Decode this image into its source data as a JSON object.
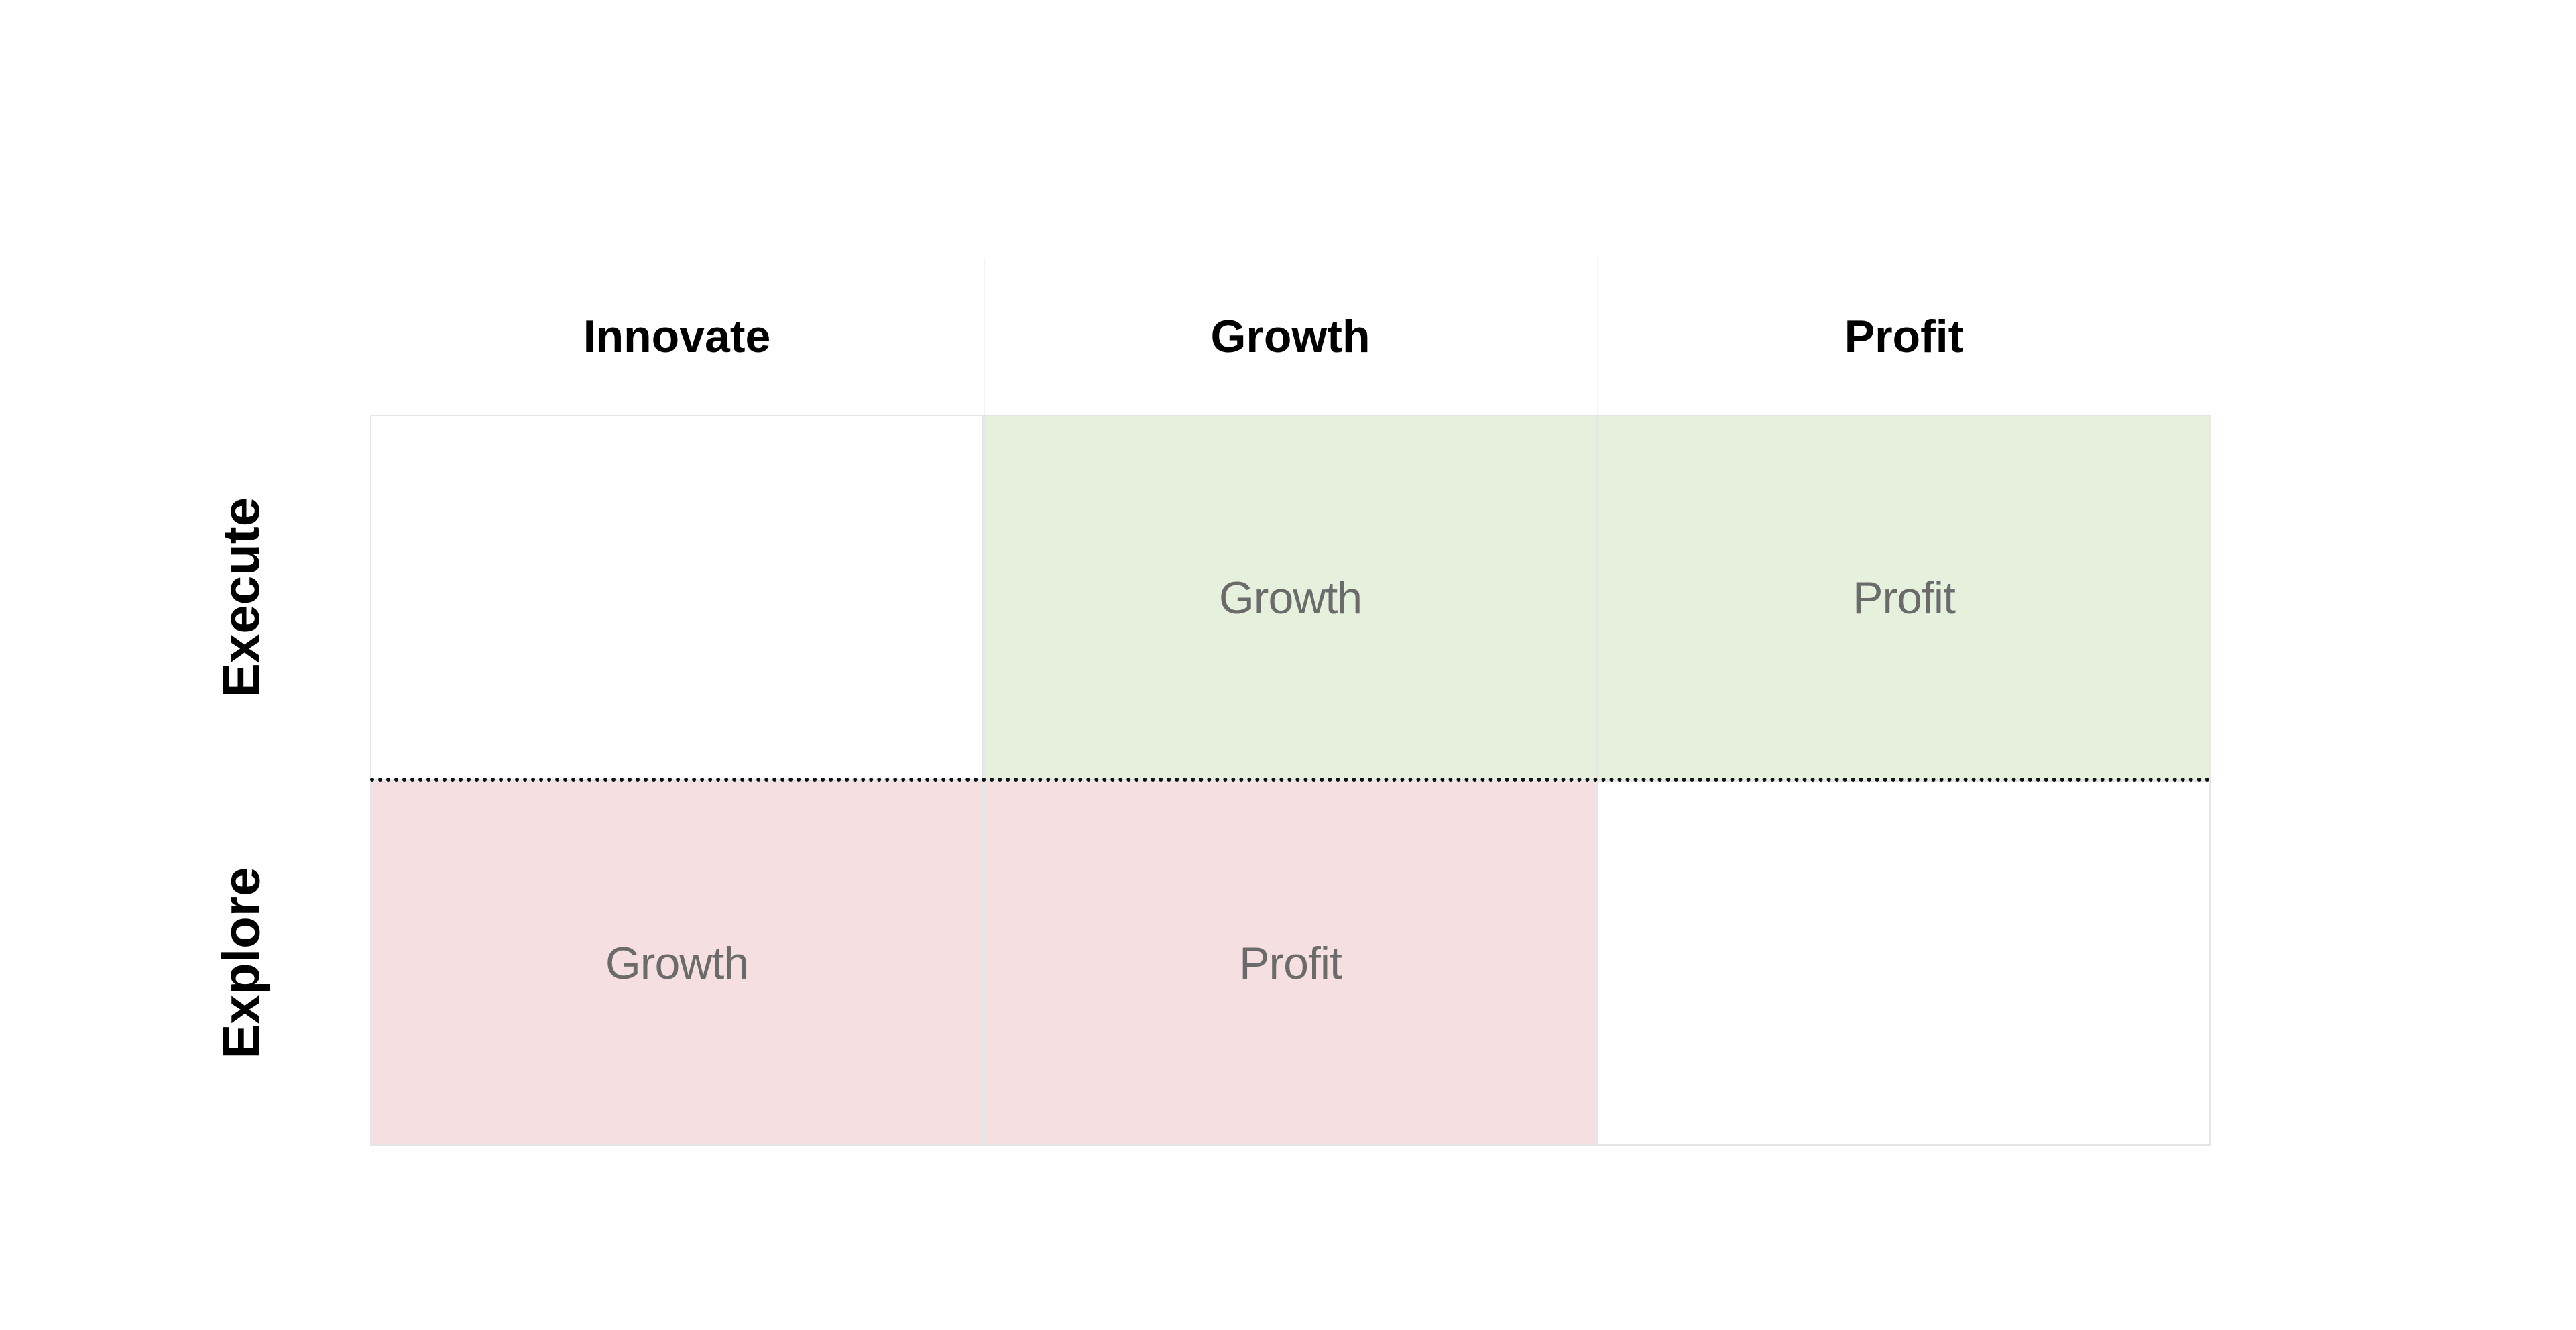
{
  "columns": [
    "Innovate",
    "Growth",
    "Profit"
  ],
  "rows": [
    "Execute",
    "Explore"
  ],
  "cells": {
    "execute": [
      "",
      "Growth",
      "Profit"
    ],
    "explore": [
      "Growth",
      "Profit",
      ""
    ]
  },
  "colors": {
    "execute_fill": "#e5f0dd",
    "explore_fill": "#f6dfe0",
    "empty_fill": "#ffffff",
    "divider": "#111111",
    "cell_text": "#6b6b6b",
    "header_text": "#000000"
  }
}
